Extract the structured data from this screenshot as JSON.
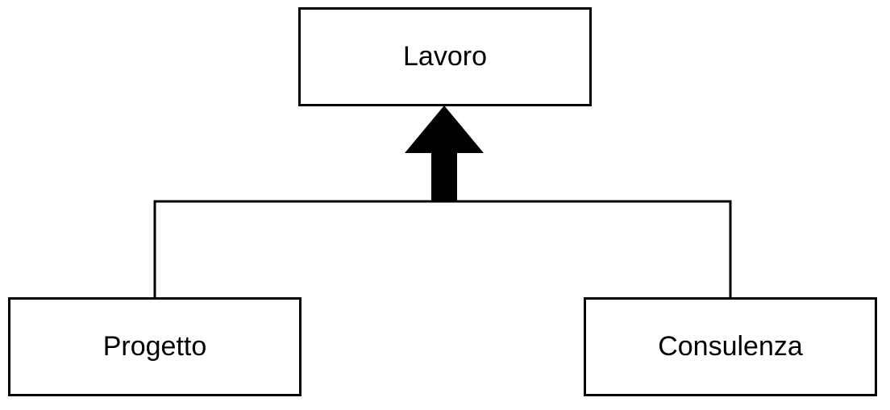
{
  "diagram": {
    "parent": {
      "label": "Lavoro"
    },
    "children": [
      {
        "label": "Progetto"
      },
      {
        "label": "Consulenza"
      }
    ],
    "relationship": "generalization",
    "colors": {
      "stroke": "#000000",
      "fill": "#ffffff"
    }
  }
}
